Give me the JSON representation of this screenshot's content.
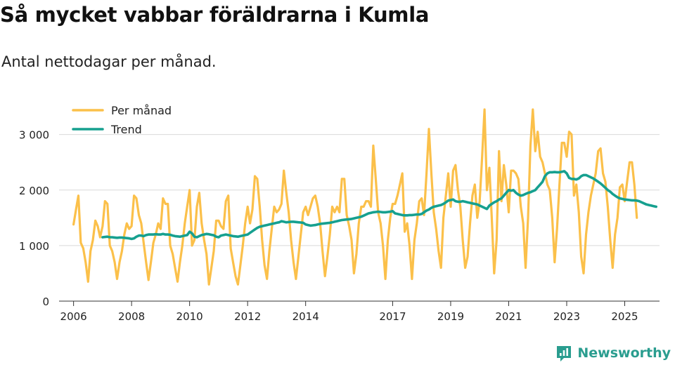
{
  "chart_data": {
    "type": "line",
    "title": "Så mycket vabbar föräldrarna i Kumla",
    "subtitle": "Antal nettodagar per månad.",
    "xlabel": "",
    "ylabel": "",
    "xlim": [
      2005.5,
      2026.2
    ],
    "ylim": [
      0,
      3400
    ],
    "y_ticks": [
      0,
      1000,
      2000,
      3000
    ],
    "y_tick_labels": [
      "0",
      "1 000",
      "2 000",
      "3 000"
    ],
    "x_ticks": [
      2006,
      2008,
      2010,
      2012,
      2014,
      2017,
      2019,
      2021,
      2023,
      2025
    ],
    "x_tick_labels": [
      "2006",
      "2008",
      "2010",
      "2012",
      "2014",
      "2017",
      "2019",
      "2021",
      "2023",
      "2025"
    ],
    "grid": true,
    "legend_position": "top-left",
    "colors": {
      "monthly": "#fbc04a",
      "trend": "#16a08f",
      "grid": "#d9d9d9",
      "axis": "#333333"
    },
    "series": [
      {
        "name": "Per månad",
        "start": 2006.0,
        "step_months": 1,
        "values": [
          1380,
          1650,
          1900,
          1050,
          950,
          700,
          350,
          900,
          1100,
          1450,
          1350,
          1150,
          1350,
          1800,
          1750,
          1000,
          900,
          700,
          400,
          700,
          900,
          1200,
          1400,
          1300,
          1350,
          1900,
          1850,
          1550,
          1400,
          1050,
          700,
          380,
          700,
          1050,
          1200,
          1400,
          1300,
          1850,
          1750,
          1750,
          1000,
          850,
          600,
          350,
          700,
          1000,
          1400,
          1700,
          2000,
          1000,
          1100,
          1700,
          1950,
          1400,
          1100,
          850,
          300,
          600,
          900,
          1450,
          1450,
          1350,
          1300,
          1800,
          1900,
          950,
          700,
          450,
          300,
          650,
          1000,
          1400,
          1700,
          1400,
          1650,
          2250,
          2200,
          1700,
          1100,
          650,
          400,
          900,
          1300,
          1700,
          1600,
          1650,
          1750,
          2350,
          1950,
          1600,
          1100,
          700,
          400,
          800,
          1200,
          1600,
          1700,
          1550,
          1700,
          1850,
          1900,
          1700,
          1400,
          900,
          450,
          800,
          1200,
          1700,
          1600,
          1700,
          1600,
          2200,
          2200,
          1550,
          1350,
          1100,
          500,
          850,
          1400,
          1700,
          1700,
          1800,
          1800,
          1700,
          2800,
          2200,
          1600,
          1400,
          1000,
          400,
          1100,
          1500,
          1750,
          1750,
          1900,
          2100,
          2300,
          1250,
          1400,
          1000,
          400,
          1100,
          1400,
          1800,
          1850,
          1550,
          2300,
          3100,
          2300,
          1600,
          1300,
          900,
          600,
          1500,
          1900,
          2300,
          1700,
          2350,
          2450,
          2000,
          1700,
          1100,
          600,
          800,
          1400,
          1900,
          2100,
          1500,
          1800,
          2600,
          3450,
          2000,
          2400,
          1500,
          500,
          1100,
          2700,
          1800,
          2450,
          2100,
          1600,
          2350,
          2350,
          2300,
          2200,
          1700,
          1400,
          600,
          1500,
          2800,
          3450,
          2700,
          3050,
          2600,
          2500,
          2300,
          2100,
          2000,
          1500,
          700,
          1300,
          2100,
          2850,
          2850,
          2600,
          3050,
          3000,
          1900,
          2100,
          1600,
          800,
          500,
          1200,
          1600,
          1900,
          2100,
          2300,
          2700,
          2750,
          2300,
          2150,
          1700,
          1100,
          600,
          1200,
          1500,
          2050,
          2100,
          1800,
          2150,
          2500,
          2500,
          2100,
          1500
        ]
      },
      {
        "name": "Trend",
        "start": 2007.0,
        "step_months": 1,
        "values": [
          1150,
          1155,
          1160,
          1150,
          1150,
          1145,
          1140,
          1145,
          1145,
          1140,
          1135,
          1130,
          1120,
          1130,
          1160,
          1180,
          1180,
          1170,
          1190,
          1200,
          1200,
          1200,
          1205,
          1200,
          1200,
          1210,
          1200,
          1200,
          1195,
          1180,
          1170,
          1165,
          1160,
          1170,
          1180,
          1190,
          1250,
          1220,
          1160,
          1150,
          1170,
          1190,
          1200,
          1210,
          1205,
          1195,
          1185,
          1160,
          1150,
          1180,
          1190,
          1200,
          1190,
          1180,
          1170,
          1165,
          1160,
          1170,
          1180,
          1190,
          1200,
          1230,
          1260,
          1290,
          1320,
          1340,
          1350,
          1360,
          1370,
          1380,
          1390,
          1400,
          1410,
          1420,
          1440,
          1430,
          1420,
          1425,
          1430,
          1430,
          1425,
          1420,
          1415,
          1410,
          1380,
          1370,
          1360,
          1365,
          1370,
          1380,
          1390,
          1395,
          1400,
          1405,
          1410,
          1420,
          1430,
          1440,
          1450,
          1460,
          1465,
          1470,
          1475,
          1480,
          1490,
          1500,
          1510,
          1520,
          1540,
          1560,
          1580,
          1590,
          1600,
          1605,
          1610,
          1605,
          1600,
          1600,
          1605,
          1610,
          1620,
          1580,
          1570,
          1560,
          1550,
          1545,
          1545,
          1550,
          1550,
          1555,
          1560,
          1560,
          1570,
          1600,
          1630,
          1650,
          1680,
          1700,
          1710,
          1720,
          1730,
          1750,
          1780,
          1810,
          1820,
          1830,
          1800,
          1790,
          1790,
          1800,
          1790,
          1780,
          1770,
          1760,
          1750,
          1740,
          1720,
          1700,
          1680,
          1660,
          1720,
          1750,
          1780,
          1800,
          1830,
          1850,
          1900,
          1950,
          2000,
          1990,
          2000,
          1950,
          1920,
          1900,
          1910,
          1930,
          1950,
          1960,
          1980,
          2000,
          2050,
          2100,
          2150,
          2250,
          2300,
          2320,
          2320,
          2325,
          2320,
          2320,
          2330,
          2340,
          2300,
          2220,
          2200,
          2200,
          2190,
          2210,
          2250,
          2270,
          2270,
          2250,
          2230,
          2210,
          2180,
          2150,
          2120,
          2080,
          2040,
          2000,
          1970,
          1930,
          1900,
          1870,
          1850,
          1840,
          1830,
          1825,
          1820,
          1815,
          1815,
          1810,
          1800,
          1780,
          1760,
          1740,
          1730,
          1720,
          1710,
          1700
        ]
      }
    ]
  },
  "brand": {
    "name": "Newsworthy"
  }
}
